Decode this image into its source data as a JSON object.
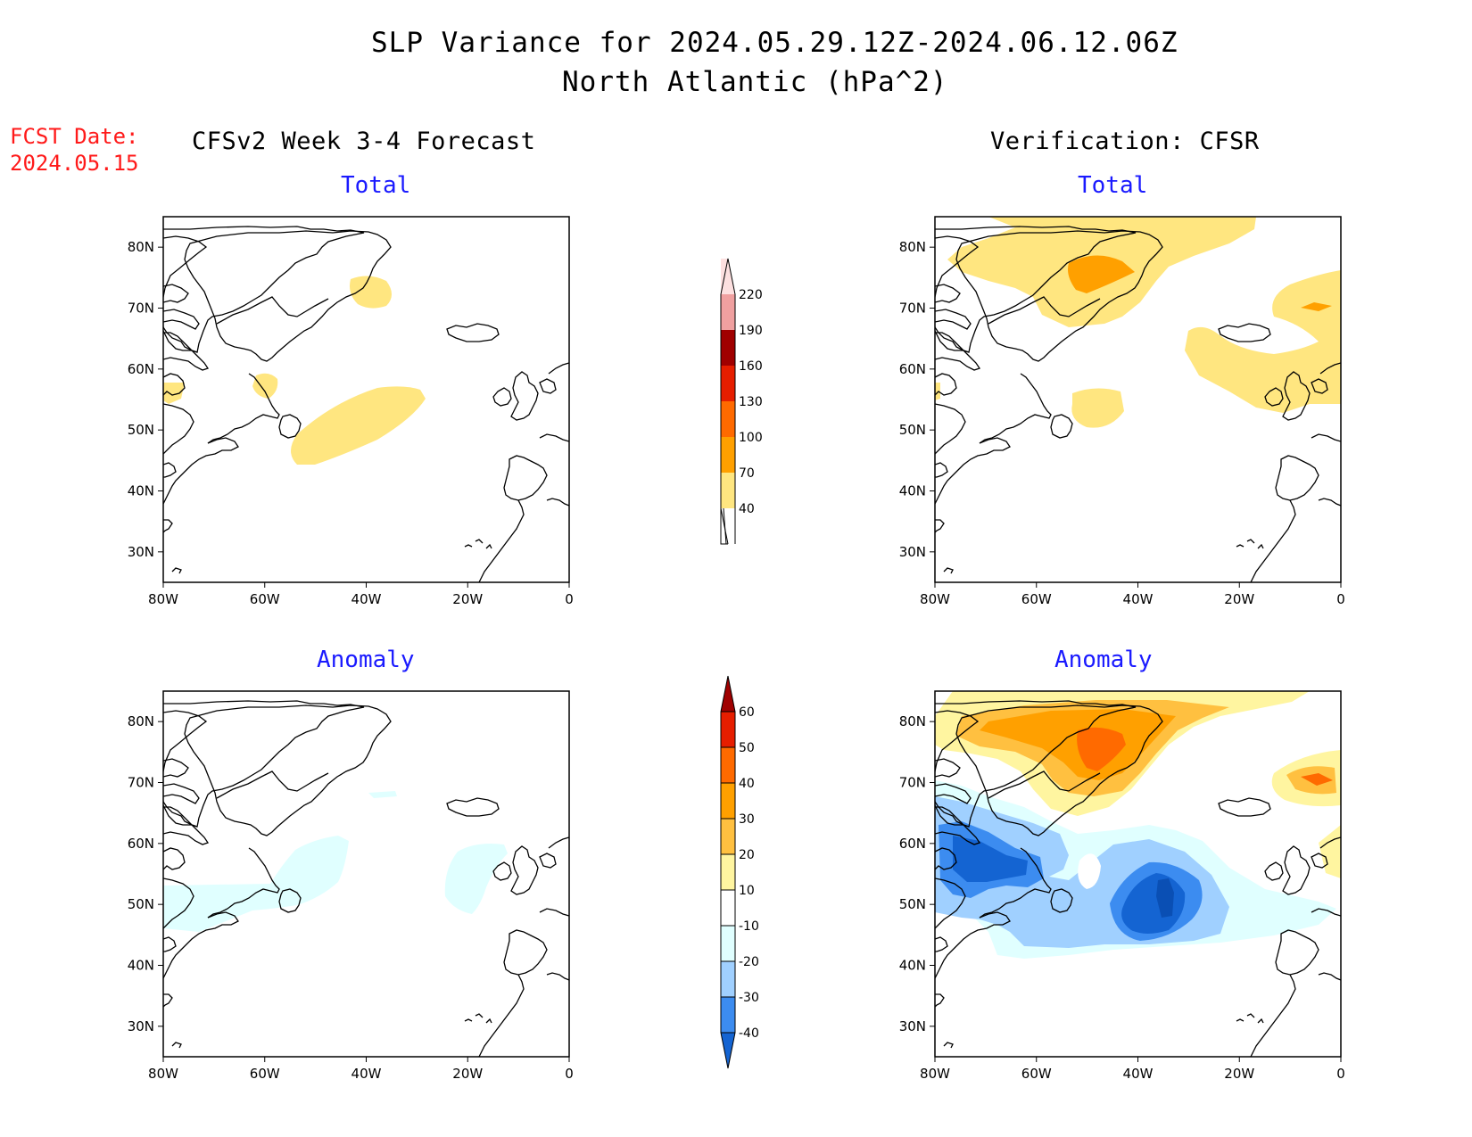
{
  "header": {
    "title_line1": "SLP Variance for 2024.05.29.12Z-2024.06.12.06Z",
    "title_line2": "North Atlantic (hPa^2)"
  },
  "fcst": {
    "label": "FCST Date:",
    "date": "2024.05.15"
  },
  "columns": {
    "left": "CFSv2 Week 3-4 Forecast",
    "right": "Verification: CFSR"
  },
  "panel_titles": {
    "total": "Total",
    "anomaly": "Anomaly"
  },
  "axes": {
    "lon_labels": [
      "80W",
      "60W",
      "40W",
      "20W",
      "0"
    ],
    "lat_labels": [
      "80N",
      "70N",
      "60N",
      "50N",
      "40N",
      "30N"
    ],
    "lon_range": [
      -80,
      0
    ],
    "lat_range": [
      25,
      85
    ]
  },
  "colorbars": {
    "total": {
      "levels": [
        "40",
        "70",
        "100",
        "130",
        "160",
        "190",
        "220"
      ],
      "colors": [
        "#ffe680",
        "#ffa000",
        "#ff6a00",
        "#e61e00",
        "#a00000",
        "#f0a0a0",
        "#fde0e0"
      ]
    },
    "anomaly": {
      "levels": [
        "60",
        "50",
        "40",
        "30",
        "20",
        "10",
        "-10",
        "-20",
        "-30",
        "-40"
      ],
      "colors": [
        "#a00000",
        "#e61e00",
        "#ff6a00",
        "#ffa000",
        "#ffc040",
        "#fff5a0",
        "#ffffff",
        "#e0ffff",
        "#a0d0ff",
        "#3c8cf0",
        "#1464d2"
      ]
    }
  },
  "shading": {
    "light_yellow": "#ffe680",
    "orange": "#ffa000",
    "dark_orange": "#ff6a00",
    "anom_yellow": "#fff5a0",
    "anom_lightorange": "#ffc040",
    "anom_orange": "#ffa000",
    "anom_darkorange": "#ff6a00",
    "anom_cyan": "#e0ffff",
    "anom_lightblue": "#a0d0ff",
    "anom_blue": "#3c8cf0",
    "anom_darkblue": "#1464d2"
  }
}
